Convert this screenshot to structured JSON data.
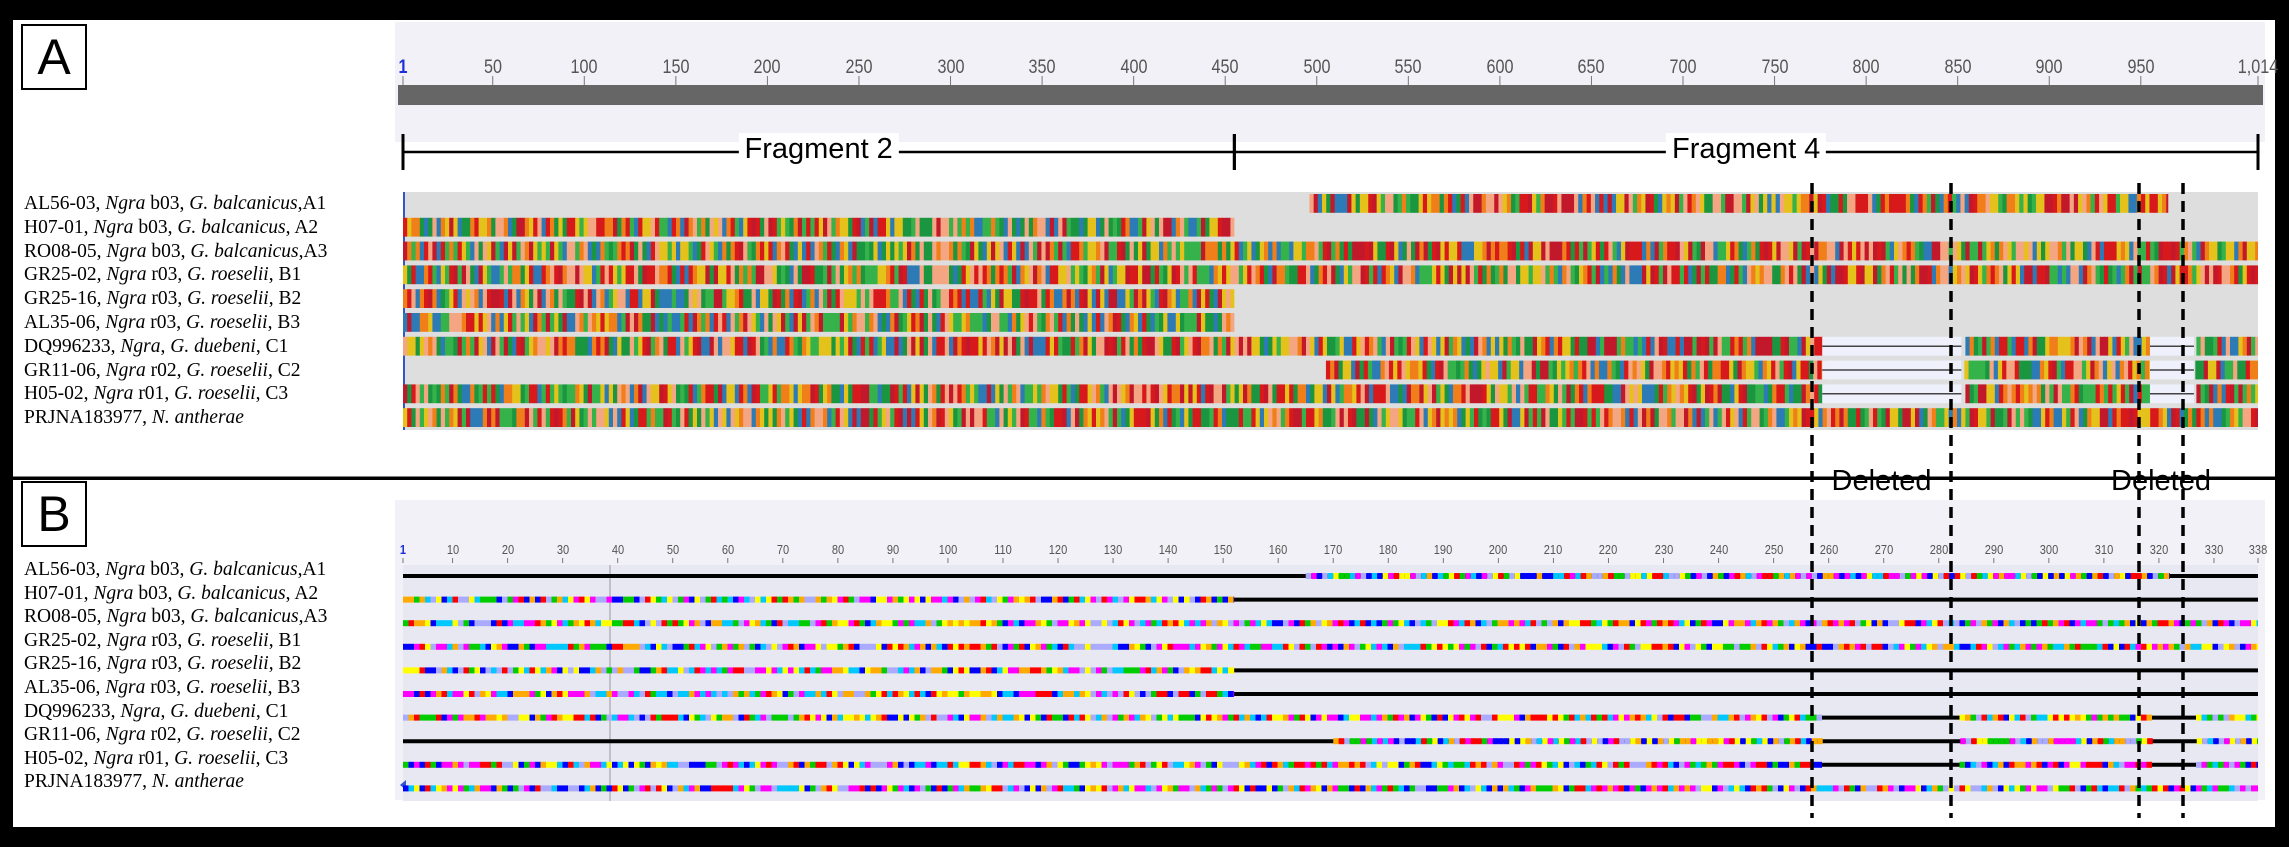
{
  "panels": {
    "a": {
      "label": "A",
      "ruler": {
        "start": 1,
        "end": 1014,
        "tick_labels": [
          "1",
          "50",
          "100",
          "150",
          "200",
          "250",
          "300",
          "350",
          "400",
          "450",
          "500",
          "550",
          "600",
          "650",
          "700",
          "750",
          "800",
          "850",
          "900",
          "950",
          "1,014"
        ],
        "tick_positions": [
          1,
          50,
          100,
          150,
          200,
          250,
          300,
          350,
          400,
          450,
          500,
          550,
          600,
          650,
          700,
          750,
          800,
          850,
          900,
          950,
          1014
        ]
      },
      "fragments": [
        {
          "label": "Fragment 2",
          "start": 1,
          "end": 455
        },
        {
          "label": "Fragment 4",
          "start": 455,
          "end": 1014
        }
      ]
    },
    "b": {
      "label": "B",
      "ruler": {
        "start": 1,
        "end": 338,
        "tick_labels": [
          "1",
          "10",
          "20",
          "30",
          "40",
          "50",
          "60",
          "70",
          "80",
          "90",
          "100",
          "110",
          "120",
          "130",
          "140",
          "150",
          "160",
          "170",
          "180",
          "190",
          "200",
          "210",
          "220",
          "230",
          "240",
          "250",
          "260",
          "270",
          "280",
          "290",
          "300",
          "310",
          "320",
          "330",
          "338"
        ],
        "tick_positions": [
          1,
          10,
          20,
          30,
          40,
          50,
          60,
          70,
          80,
          90,
          100,
          110,
          120,
          130,
          140,
          150,
          160,
          170,
          180,
          190,
          200,
          210,
          220,
          230,
          240,
          250,
          260,
          270,
          280,
          290,
          300,
          310,
          320,
          330,
          338
        ]
      }
    }
  },
  "sequences": [
    {
      "id": "AL56-03",
      "genus": "Ngra",
      "strain": "b03",
      "host": "G. balcanicus",
      "sep": ",",
      "sample": "A1",
      "nt_start": 496,
      "nt_end": 965,
      "aa_start": 165,
      "aa_end": 322,
      "gaps": false
    },
    {
      "id": "H07-01",
      "genus": "Ngra",
      "strain": "b03",
      "host": "G. balcanicus",
      "sep": ", ",
      "sample": "A2",
      "nt_start": 1,
      "nt_end": 455,
      "aa_start": 1,
      "aa_end": 152,
      "gaps": false
    },
    {
      "id": "RO08-05",
      "genus": "Ngra",
      "strain": "b03",
      "host": "G. balcanicus",
      "sep": ",",
      "sample": "A3",
      "nt_start": 1,
      "nt_end": 1014,
      "aa_start": 1,
      "aa_end": 338,
      "gaps": false
    },
    {
      "id": "GR25-02",
      "genus": "Ngra",
      "strain": "r03",
      "host": "G. roeselii",
      "sep": ", ",
      "sample": "B1",
      "nt_start": 1,
      "nt_end": 1014,
      "aa_start": 1,
      "aa_end": 338,
      "gaps": false
    },
    {
      "id": "GR25-16",
      "genus": "Ngra",
      "strain": "r03",
      "host": "G. roeselii",
      "sep": ", ",
      "sample": "B2",
      "nt_start": 1,
      "nt_end": 455,
      "aa_start": 1,
      "aa_end": 152,
      "gaps": false
    },
    {
      "id": "AL35-06",
      "genus": "Ngra",
      "strain": "r03",
      "host": "G. roeselii",
      "sep": ", ",
      "sample": "B3",
      "nt_start": 1,
      "nt_end": 455,
      "aa_start": 1,
      "aa_end": 152,
      "gaps": false
    },
    {
      "id": "DQ996233",
      "genus": "Ngra",
      "strain": "",
      "host": "G. duebeni",
      "sep": ", ",
      "sample": "C1",
      "nt_start": 1,
      "nt_end": 1014,
      "aa_start": 1,
      "aa_end": 338,
      "gaps": true
    },
    {
      "id": "GR11-06",
      "genus": "Ngra",
      "strain": "r02",
      "host": "G. roeselii",
      "sep": ", ",
      "sample": "C2",
      "nt_start": 505,
      "nt_end": 1014,
      "aa_start": 170,
      "aa_end": 338,
      "gaps": true
    },
    {
      "id": "H05-02",
      "genus": "Ngra",
      "strain": "r01",
      "host": "G. roeselii",
      "sep": ", ",
      "sample": "C3",
      "nt_start": 1,
      "nt_end": 1014,
      "aa_start": 1,
      "aa_end": 338,
      "gaps": true
    },
    {
      "id": "PRJNA183977",
      "genus": "N. antherae",
      "strain": "",
      "host": "",
      "sep": "",
      "sample": "",
      "nt_start": 1,
      "nt_end": 1014,
      "aa_start": 1,
      "aa_end": 338,
      "gaps": false
    }
  ],
  "deleted_regions": [
    {
      "label": "Deleted",
      "nt_start": 776,
      "nt_end": 852,
      "aa_start": 258,
      "aa_end": 283
    },
    {
      "label": "Deleted",
      "nt_start": 955,
      "nt_end": 979,
      "aa_start": 318,
      "aa_end": 326
    }
  ],
  "colors": {
    "nucleotide": [
      "#d7191c",
      "#f4a582",
      "#1a9641",
      "#2c7bb6",
      "#f07f1a",
      "#e5c21b",
      "#35b24a",
      "#c2182b"
    ],
    "amino_acid": [
      "#ff00ff",
      "#00c8ff",
      "#ffff00",
      "#0000ff",
      "#00cc00",
      "#ff0000",
      "#ffaa00",
      "#aaaaff"
    ],
    "alignment_bg": "#dedede",
    "ruler_bar": "#666666",
    "view_bg": "#f1f1f7"
  }
}
